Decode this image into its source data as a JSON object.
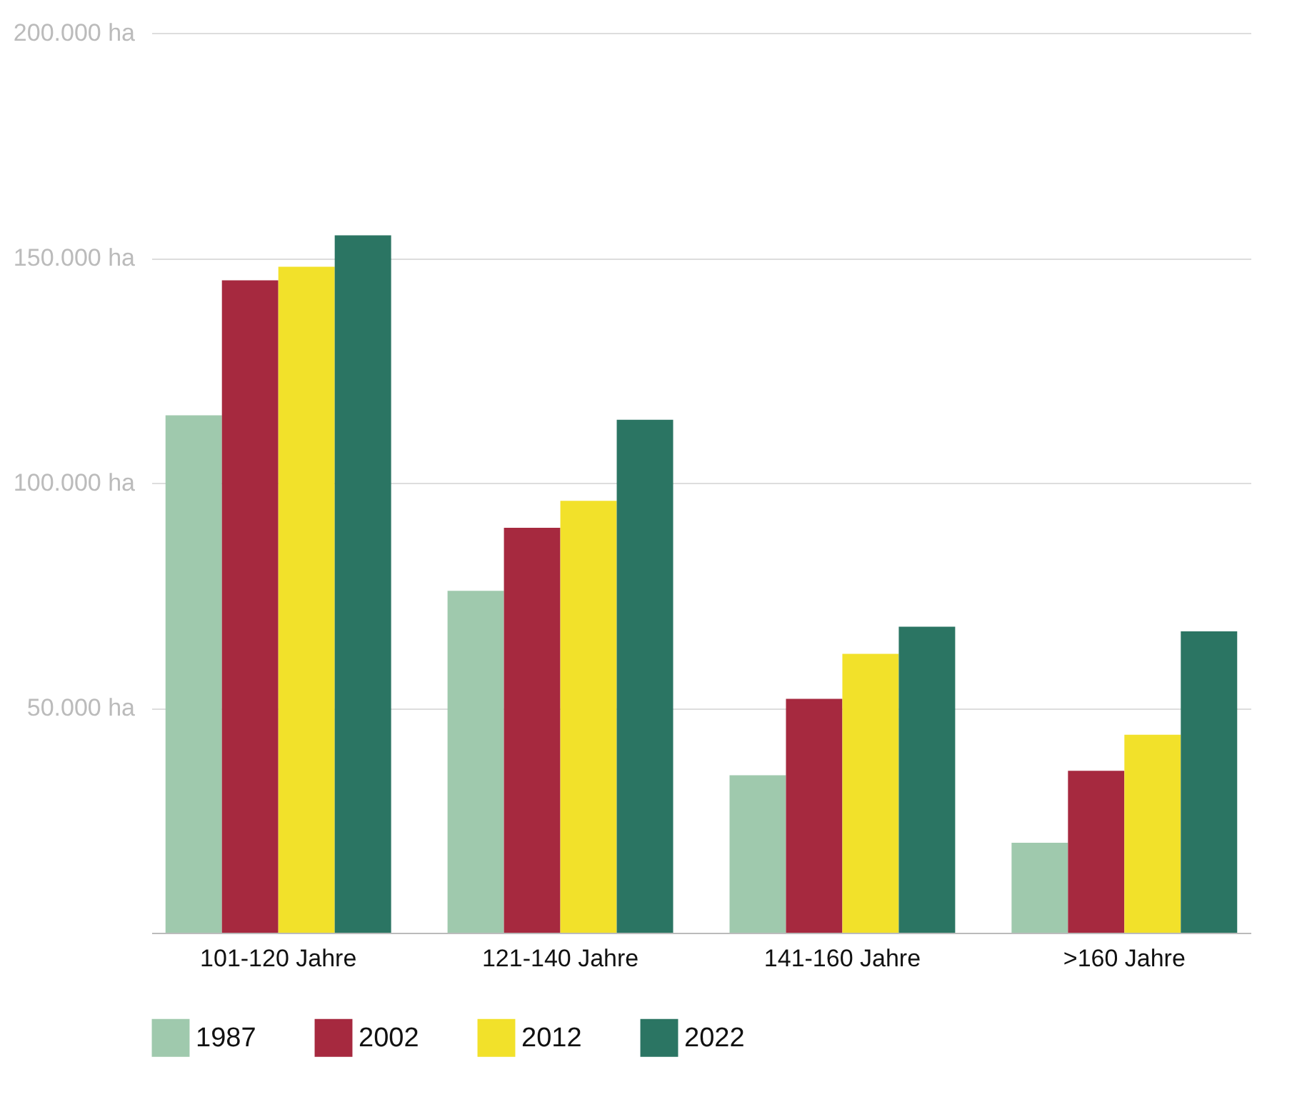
{
  "chart_data": {
    "type": "bar",
    "categories": [
      "101-120 Jahre",
      "121-140 Jahre",
      "141-160 Jahre",
      ">160 Jahre"
    ],
    "series": [
      {
        "name": "1987",
        "color": "#9fc9ad",
        "values": [
          115000,
          76000,
          35000,
          20000
        ]
      },
      {
        "name": "2002",
        "color": "#a6293f",
        "values": [
          145000,
          90000,
          52000,
          36000
        ]
      },
      {
        "name": "2012",
        "color": "#f2e12a",
        "values": [
          148000,
          96000,
          62000,
          44000
        ]
      },
      {
        "name": "2022",
        "color": "#2b7563",
        "values": [
          155000,
          114000,
          68000,
          67000
        ]
      }
    ],
    "ylim": [
      0,
      200000
    ],
    "yticks": [
      {
        "value": 50000,
        "label": "50.000 ha"
      },
      {
        "value": 100000,
        "label": "100.000 ha"
      },
      {
        "value": 150000,
        "label": "150.000 ha"
      },
      {
        "value": 200000,
        "label": "200.000 ha"
      }
    ],
    "grid": "y",
    "legend": "bottom left"
  }
}
